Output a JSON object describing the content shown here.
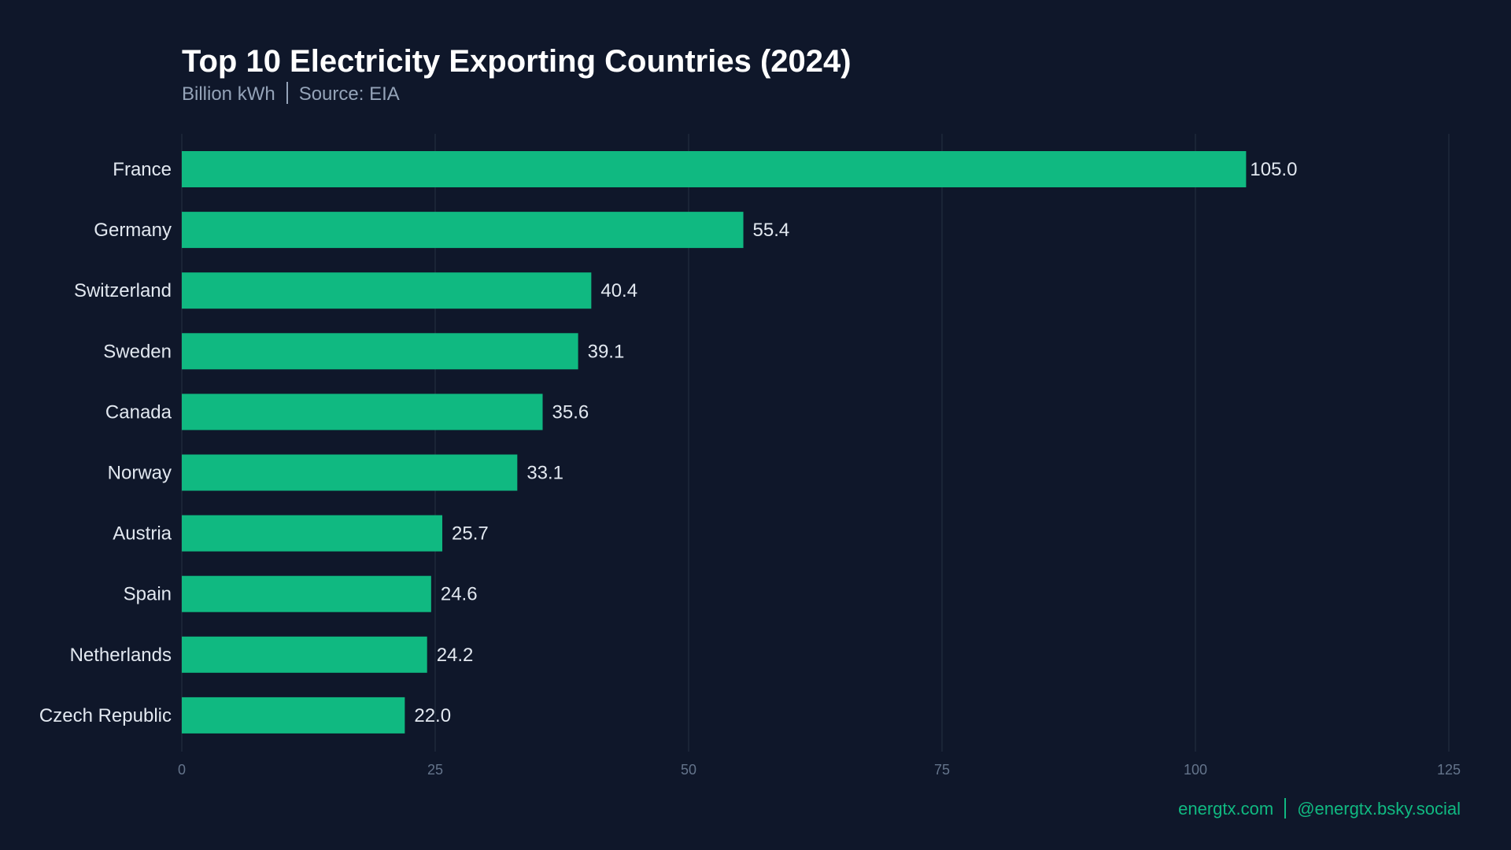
{
  "chart_data": {
    "type": "bar",
    "orientation": "horizontal",
    "title": "Top 10 Electricity Exporting Countries (2024)",
    "subtitle_unit": "Billion kWh",
    "subtitle_source": "Source: EIA",
    "categories": [
      "France",
      "Germany",
      "Switzerland",
      "Sweden",
      "Canada",
      "Norway",
      "Austria",
      "Spain",
      "Netherlands",
      "Czech Republic"
    ],
    "values": [
      105.0,
      55.4,
      40.4,
      39.1,
      35.6,
      33.1,
      25.7,
      24.6,
      24.2,
      22.0
    ],
    "data_labels": [
      "105.0",
      "55.4",
      "40.4",
      "39.1",
      "35.6",
      "33.1",
      "25.7",
      "24.6",
      "24.2",
      "22.0"
    ],
    "xlim": [
      0,
      125
    ],
    "xticks": [
      0,
      25,
      50,
      75,
      100,
      125
    ],
    "xlabel": "",
    "ylabel": "",
    "grid": "vertical",
    "colors": {
      "bar": "#10b981",
      "background": "#0f172a",
      "grid": "#1e293b",
      "tick_label": "#64748b",
      "category_label": "#e2e8f0"
    }
  },
  "footer": {
    "website": "energtx.com",
    "social": "@energtx.bsky.social"
  }
}
